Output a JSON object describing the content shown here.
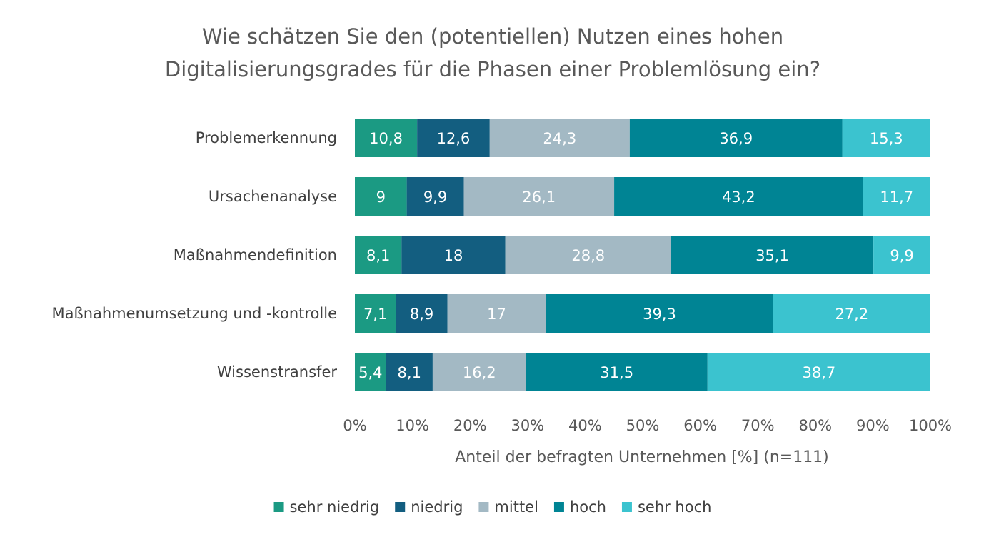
{
  "chart_data": {
    "type": "bar",
    "orientation": "horizontal",
    "stacked": "percent",
    "title": "Wie schätzen Sie den (potentiellen) Nutzen eines hohen Digitalisierungsgrades für die Phasen einer Problemlösung ein?",
    "title_lines": [
      "Wie schätzen Sie den (potentiellen) Nutzen eines hohen",
      "Digitalisierungsgrades für die Phasen einer Problemlösung ein?"
    ],
    "xlabel": "Anteil der befragten Unternehmen [%] (n=111)",
    "ylabel": "",
    "xlim": [
      0,
      100
    ],
    "x_ticks": [
      "0%",
      "10%",
      "20%",
      "30%",
      "40%",
      "50%",
      "60%",
      "70%",
      "80%",
      "90%",
      "100%"
    ],
    "grid": false,
    "legend_position": "bottom",
    "categories": [
      "Problemerkennung",
      "Ursachenanalyse",
      "Maßnahmendefinition",
      "Maßnahmenumsetzung und -kontrolle",
      "Wissenstransfer"
    ],
    "series": [
      {
        "name": "sehr niedrig",
        "color": "#1b9a83",
        "values": [
          10.8,
          9,
          8.1,
          7.1,
          5.4
        ],
        "labels": [
          "10,8",
          "9",
          "8,1",
          "7,1",
          "5,4"
        ]
      },
      {
        "name": "niedrig",
        "color": "#135e80",
        "values": [
          12.6,
          9.9,
          18,
          8.9,
          8.1
        ],
        "labels": [
          "12,6",
          "9,9",
          "18",
          "8,9",
          "8,1"
        ]
      },
      {
        "name": "mittel",
        "color": "#a3b9c4",
        "values": [
          24.3,
          26.1,
          28.8,
          17,
          16.2
        ],
        "labels": [
          "24,3",
          "26,1",
          "28,8",
          "17",
          "16,2"
        ]
      },
      {
        "name": "hoch",
        "color": "#008494",
        "values": [
          36.9,
          43.2,
          35.1,
          39.3,
          31.5
        ],
        "labels": [
          "36,9",
          "43,2",
          "35,1",
          "39,3",
          "31,5"
        ]
      },
      {
        "name": "sehr hoch",
        "color": "#3bc3cf",
        "values": [
          15.3,
          11.7,
          9.9,
          27.2,
          38.7
        ],
        "labels": [
          "15,3",
          "11,7",
          "9,9",
          "27,2",
          "38,7"
        ]
      }
    ]
  }
}
